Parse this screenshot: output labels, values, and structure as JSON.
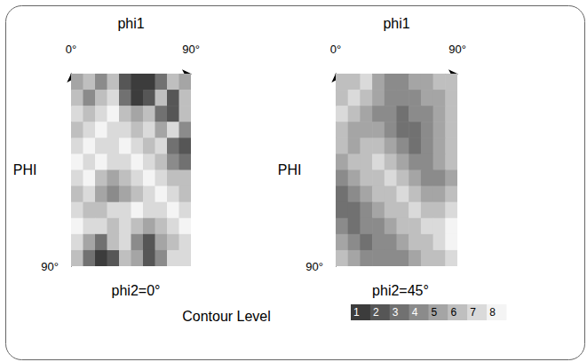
{
  "chart_data": [
    {
      "type": "heatmap",
      "title": "phi2=0°",
      "x_label": "phi1",
      "y_label": "PHI",
      "xlim": [
        0,
        90
      ],
      "xticks": [
        {
          "value": 0,
          "label": "0°"
        },
        {
          "value": 90,
          "label": "90°"
        }
      ],
      "ylim": [
        0,
        90
      ],
      "yticks": [
        {
          "value": 90,
          "label": "90°"
        }
      ],
      "cells": [
        [
          5,
          6,
          4,
          6,
          2,
          1,
          1,
          3,
          6,
          5
        ],
        [
          6,
          4,
          6,
          7,
          3,
          1,
          2,
          6,
          2,
          6
        ],
        [
          7,
          6,
          7,
          8,
          6,
          5,
          6,
          3,
          2,
          6
        ],
        [
          6,
          7,
          8,
          7,
          7,
          6,
          7,
          5,
          7,
          4
        ],
        [
          7,
          8,
          7,
          7,
          8,
          7,
          6,
          7,
          3,
          2
        ],
        [
          8,
          7,
          8,
          7,
          7,
          8,
          7,
          6,
          4,
          3
        ],
        [
          7,
          8,
          6,
          5,
          6,
          7,
          8,
          7,
          6,
          6
        ],
        [
          6,
          7,
          5,
          4,
          5,
          6,
          7,
          8,
          7,
          6
        ],
        [
          7,
          6,
          6,
          7,
          7,
          8,
          7,
          7,
          8,
          7
        ],
        [
          8,
          7,
          7,
          6,
          7,
          6,
          5,
          6,
          7,
          8
        ],
        [
          7,
          5,
          3,
          6,
          7,
          4,
          2,
          5,
          6,
          7
        ],
        [
          6,
          3,
          1,
          2,
          6,
          5,
          2,
          4,
          7,
          7
        ]
      ]
    },
    {
      "type": "heatmap",
      "title": "phi2=45°",
      "x_label": "phi1",
      "y_label": "PHI",
      "xlim": [
        0,
        90
      ],
      "xticks": [
        {
          "value": 0,
          "label": "0°"
        },
        {
          "value": 90,
          "label": "90°"
        }
      ],
      "ylim": [
        0,
        90
      ],
      "yticks": [
        {
          "value": 90,
          "label": "90°"
        }
      ],
      "cells": [
        [
          6,
          6,
          7,
          5,
          4,
          4,
          5,
          5,
          6,
          6
        ],
        [
          6,
          7,
          6,
          5,
          4,
          4,
          4,
          5,
          5,
          6
        ],
        [
          7,
          6,
          5,
          4,
          4,
          3,
          4,
          4,
          5,
          6
        ],
        [
          6,
          5,
          5,
          5,
          4,
          3,
          3,
          4,
          5,
          6
        ],
        [
          6,
          5,
          6,
          6,
          5,
          4,
          3,
          4,
          5,
          6
        ],
        [
          5,
          6,
          6,
          7,
          6,
          5,
          4,
          4,
          5,
          6
        ],
        [
          4,
          5,
          6,
          6,
          7,
          6,
          5,
          4,
          4,
          5
        ],
        [
          3,
          4,
          5,
          6,
          6,
          7,
          6,
          5,
          5,
          6
        ],
        [
          3,
          3,
          4,
          5,
          6,
          6,
          7,
          6,
          6,
          7
        ],
        [
          4,
          3,
          4,
          4,
          5,
          6,
          6,
          7,
          7,
          8
        ],
        [
          5,
          4,
          3,
          4,
          4,
          5,
          6,
          6,
          7,
          8
        ],
        [
          6,
          5,
          4,
          4,
          4,
          4,
          5,
          6,
          6,
          7
        ]
      ]
    }
  ],
  "color_bar": {
    "label": "Contour Level",
    "range": [
      1,
      8
    ],
    "ticks": [
      1,
      2,
      3,
      4,
      5,
      6,
      7,
      8
    ]
  }
}
